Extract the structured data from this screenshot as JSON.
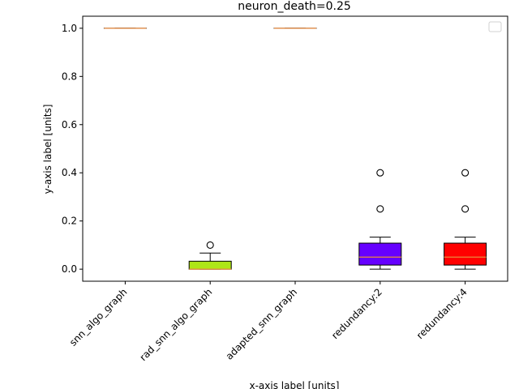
{
  "chart_data": {
    "type": "box",
    "title": "neuron_death=0.25",
    "xlabel": "x-axis label [units]",
    "ylabel": "y-axis label [units]",
    "ylim": [
      -0.05,
      1.05
    ],
    "yticks": [
      0.0,
      0.2,
      0.4,
      0.6,
      0.8,
      1.0
    ],
    "ytick_labels": [
      "0.0",
      "0.2",
      "0.4",
      "0.6",
      "0.8",
      "1.0"
    ],
    "grid": false,
    "legend": {
      "placement": "top-right",
      "entries": []
    },
    "categories": [
      "snn_algo_graph",
      "rad_snn_algo_graph",
      "adapted_snn_graph",
      "redundancy:2",
      "redundancy:4"
    ],
    "boxes": [
      {
        "category": "snn_algo_graph",
        "whislo": 1.0,
        "q1": 1.0,
        "med": 1.0,
        "q3": 1.0,
        "whishi": 1.0,
        "fliers": [],
        "color": "#f5a623"
      },
      {
        "category": "rad_snn_algo_graph",
        "whislo": 0.0,
        "q1": 0.0,
        "med": 0.0,
        "q3": 0.033,
        "whishi": 0.067,
        "fliers": [
          0.1
        ],
        "color": "#aee617"
      },
      {
        "category": "adapted_snn_graph",
        "whislo": 1.0,
        "q1": 1.0,
        "med": 1.0,
        "q3": 1.0,
        "whishi": 1.0,
        "fliers": [],
        "color": "#f5a623"
      },
      {
        "category": "redundancy:2",
        "whislo": 0.0,
        "q1": 0.017,
        "med": 0.05,
        "q3": 0.108,
        "whishi": 0.133,
        "fliers": [
          0.25,
          0.4
        ],
        "color": "#6600ff"
      },
      {
        "category": "redundancy:4",
        "whislo": 0.0,
        "q1": 0.017,
        "med": 0.05,
        "q3": 0.108,
        "whishi": 0.133,
        "fliers": [
          0.25,
          0.4
        ],
        "color": "#ff0000"
      }
    ],
    "median_color": "#e8893c"
  }
}
